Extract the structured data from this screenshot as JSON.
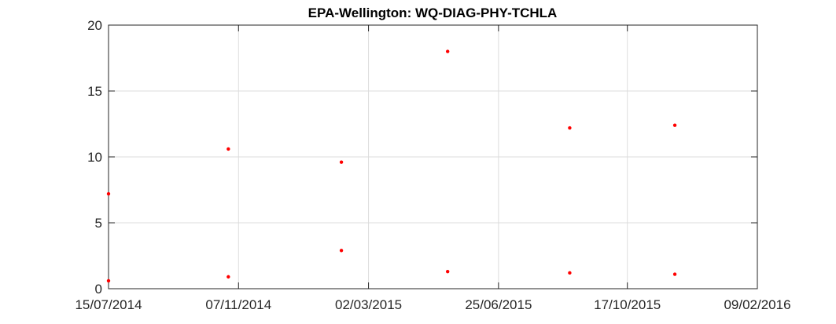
{
  "chart_data": {
    "type": "scatter",
    "title": "EPA-Wellington: WQ-DIAG-PHY-TCHLA",
    "xlabel": "",
    "ylabel": "",
    "x_axis_type": "date",
    "xlim": [
      "2014-07-15",
      "2016-02-09"
    ],
    "ylim": [
      0,
      20
    ],
    "x_ticks": [
      "2014-07-15",
      "2014-11-07",
      "2015-03-02",
      "2015-06-25",
      "2015-10-17",
      "2016-02-09"
    ],
    "x_tick_labels": [
      "15/07/2014",
      "07/11/2014",
      "02/03/2015",
      "25/06/2015",
      "17/10/2015",
      "09/02/2016"
    ],
    "y_ticks": [
      0,
      5,
      10,
      15,
      20
    ],
    "y_tick_labels": [
      "0",
      "5",
      "10",
      "15",
      "20"
    ],
    "grid": true,
    "marker_color": "#ff0000",
    "series": [
      {
        "points": [
          {
            "x": "2014-07-15",
            "y": 7.2
          },
          {
            "x": "2014-07-15",
            "y": 0.6
          },
          {
            "x": "2014-10-29",
            "y": 10.6
          },
          {
            "x": "2014-10-29",
            "y": 0.9
          },
          {
            "x": "2015-02-06",
            "y": 9.6
          },
          {
            "x": "2015-02-06",
            "y": 2.9
          },
          {
            "x": "2015-05-11",
            "y": 18.0
          },
          {
            "x": "2015-05-11",
            "y": 1.3
          },
          {
            "x": "2015-08-27",
            "y": 12.2
          },
          {
            "x": "2015-08-27",
            "y": 1.2
          },
          {
            "x": "2015-11-28",
            "y": 12.4
          },
          {
            "x": "2015-11-28",
            "y": 1.1
          }
        ]
      }
    ]
  }
}
